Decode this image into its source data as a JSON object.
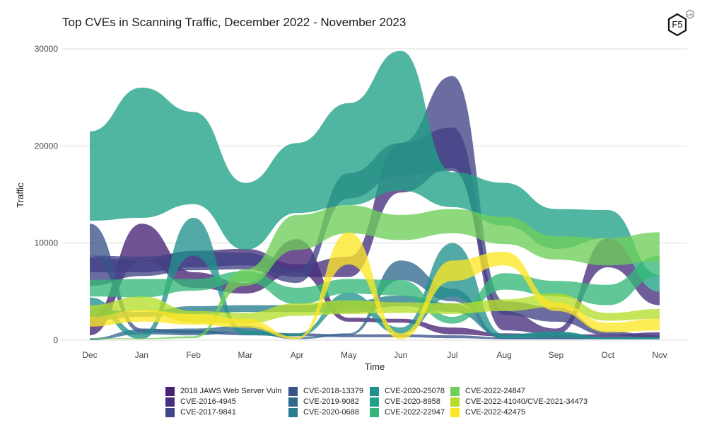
{
  "chart_data": {
    "type": "area",
    "subtype": "bump-streamgraph",
    "title": "Top CVEs in Scanning Traffic, December 2022 - November 2023",
    "xlabel": "Time",
    "ylabel": "Traffic",
    "categories": [
      "Dec",
      "Jan",
      "Feb",
      "Mar",
      "Apr",
      "May",
      "Jun",
      "Jul",
      "Aug",
      "Sep",
      "Oct",
      "Nov"
    ],
    "yticks": [
      0,
      10000,
      20000,
      30000
    ],
    "ytick_labels": [
      "0",
      "10000",
      "20000",
      "30000"
    ],
    "ylim": [
      0,
      31000
    ],
    "grid": true,
    "legend_position": "bottom",
    "series": [
      {
        "name": "2018 JAWS Web Server Vuln",
        "color": "#482374",
        "ranges": [
          [
            500,
            2200
          ],
          [
            8200,
            12000
          ],
          [
            5400,
            7000
          ],
          [
            4800,
            5900
          ],
          [
            7000,
            10400
          ],
          [
            1900,
            2300
          ],
          [
            1800,
            2200
          ],
          [
            600,
            1300
          ],
          [
            400,
            700
          ],
          [
            300,
            600
          ],
          [
            300,
            600
          ],
          [
            300,
            800
          ]
        ]
      },
      {
        "name": "CVE-2016-4945",
        "color": "#46307e",
        "ranges": [
          [
            7000,
            8500
          ],
          [
            7000,
            8200
          ],
          [
            7500,
            9200
          ],
          [
            7700,
            9400
          ],
          [
            6500,
            7800
          ],
          [
            6500,
            8600
          ],
          [
            15200,
            20300
          ],
          [
            17700,
            21900
          ],
          [
            1000,
            3000
          ],
          [
            600,
            1200
          ],
          [
            7500,
            10500
          ],
          [
            3600,
            5000
          ]
        ]
      },
      {
        "name": "CVE-2017-9841",
        "color": "#414487",
        "ranges": [
          [
            5600,
            8700
          ],
          [
            6600,
            8600
          ],
          [
            7200,
            9100
          ],
          [
            7300,
            9000
          ],
          [
            5900,
            7300
          ],
          [
            14600,
            17200
          ],
          [
            17000,
            20300
          ],
          [
            17400,
            27200
          ],
          [
            2600,
            4000
          ],
          [
            1900,
            3400
          ],
          [
            500,
            900
          ],
          [
            200,
            500
          ]
        ]
      },
      {
        "name": "CVE-2018-13379",
        "color": "#3b528b",
        "ranges": [
          [
            8700,
            12000
          ],
          [
            800,
            1200
          ],
          [
            700,
            1000
          ],
          [
            500,
            800
          ],
          [
            400,
            700
          ],
          [
            300,
            600
          ],
          [
            300,
            600
          ],
          [
            200,
            500
          ],
          [
            100,
            300
          ],
          [
            100,
            300
          ],
          [
            100,
            300
          ],
          [
            100,
            300
          ]
        ]
      },
      {
        "name": "CVE-2019-9082",
        "color": "#31688e",
        "ranges": [
          [
            0,
            200
          ],
          [
            600,
            1100
          ],
          [
            500,
            1200
          ],
          [
            800,
            1500
          ],
          [
            100,
            300
          ],
          [
            500,
            700
          ],
          [
            6200,
            8200
          ],
          [
            4000,
            5300
          ],
          [
            100,
            300
          ],
          [
            100,
            300
          ],
          [
            100,
            300
          ],
          [
            100,
            300
          ]
        ]
      },
      {
        "name": "CVE-2020-0688",
        "color": "#287d8e",
        "ranges": [
          [
            2000,
            3200
          ],
          [
            2400,
            2900
          ],
          [
            2700,
            3500
          ],
          [
            2900,
            3600
          ],
          [
            2900,
            3600
          ],
          [
            2800,
            4000
          ],
          [
            3500,
            4600
          ],
          [
            2900,
            3800
          ],
          [
            300,
            500
          ],
          [
            400,
            800
          ],
          [
            100,
            300
          ],
          [
            100,
            300
          ]
        ]
      },
      {
        "name": "CVE-2020-25078",
        "color": "#21918c",
        "ranges": [
          [
            3200,
            4400
          ],
          [
            100,
            700
          ],
          [
            8700,
            12600
          ],
          [
            500,
            1000
          ],
          [
            400,
            700
          ],
          [
            3600,
            4900
          ],
          [
            600,
            1300
          ],
          [
            4500,
            10000
          ],
          [
            200,
            600
          ],
          [
            300,
            900
          ],
          [
            100,
            300
          ],
          [
            100,
            300
          ]
        ]
      },
      {
        "name": "CVE-2020-8958",
        "color": "#1fa187",
        "ranges": [
          [
            12300,
            21500
          ],
          [
            12600,
            26000
          ],
          [
            14000,
            23500
          ],
          [
            9300,
            16200
          ],
          [
            13100,
            20300
          ],
          [
            13900,
            24400
          ],
          [
            15400,
            29800
          ],
          [
            13700,
            17300
          ],
          [
            11800,
            16200
          ],
          [
            9400,
            13500
          ],
          [
            10500,
            13400
          ],
          [
            5000,
            6700
          ]
        ]
      },
      {
        "name": "CVE-2022-22947",
        "color": "#35b779",
        "ranges": [
          [
            4500,
            6200
          ],
          [
            4400,
            6300
          ],
          [
            5100,
            6300
          ],
          [
            6000,
            7100
          ],
          [
            3700,
            5400
          ],
          [
            4800,
            6300
          ],
          [
            4600,
            6200
          ],
          [
            1700,
            2400
          ],
          [
            5200,
            6900
          ],
          [
            4500,
            6100
          ],
          [
            3600,
            5700
          ],
          [
            6600,
            8700
          ]
        ]
      },
      {
        "name": "CVE-2022-24847",
        "color": "#6ece58",
        "ranges": [
          [
            100,
            200
          ],
          [
            100,
            200
          ],
          [
            200,
            400
          ],
          [
            5600,
            7300
          ],
          [
            9300,
            12900
          ],
          [
            11000,
            13900
          ],
          [
            10300,
            12900
          ],
          [
            11000,
            13500
          ],
          [
            9900,
            12700
          ],
          [
            8300,
            10700
          ],
          [
            7700,
            10500
          ],
          [
            8100,
            11100
          ]
        ]
      },
      {
        "name": "CVE-2022-41040/CVE-2021-34473",
        "color": "#b5de2b",
        "ranges": [
          [
            2400,
            3600
          ],
          [
            3000,
            4500
          ],
          [
            1800,
            3000
          ],
          [
            1700,
            2800
          ],
          [
            2500,
            3800
          ],
          [
            2700,
            4100
          ],
          [
            2800,
            3900
          ],
          [
            2700,
            3800
          ],
          [
            3000,
            4200
          ],
          [
            3400,
            4800
          ],
          [
            2000,
            2800
          ],
          [
            2200,
            3200
          ]
        ]
      },
      {
        "name": "CVE-2022-42475",
        "color": "#fde725",
        "ranges": [
          [
            1400,
            2400
          ],
          [
            1900,
            3100
          ],
          [
            1600,
            2700
          ],
          [
            1300,
            2200
          ],
          [
            100,
            300
          ],
          [
            7800,
            11100
          ],
          [
            100,
            700
          ],
          [
            6100,
            8200
          ],
          [
            7700,
            9100
          ],
          [
            3000,
            3900
          ],
          [
            800,
            1800
          ],
          [
            1000,
            2200
          ]
        ]
      }
    ]
  }
}
